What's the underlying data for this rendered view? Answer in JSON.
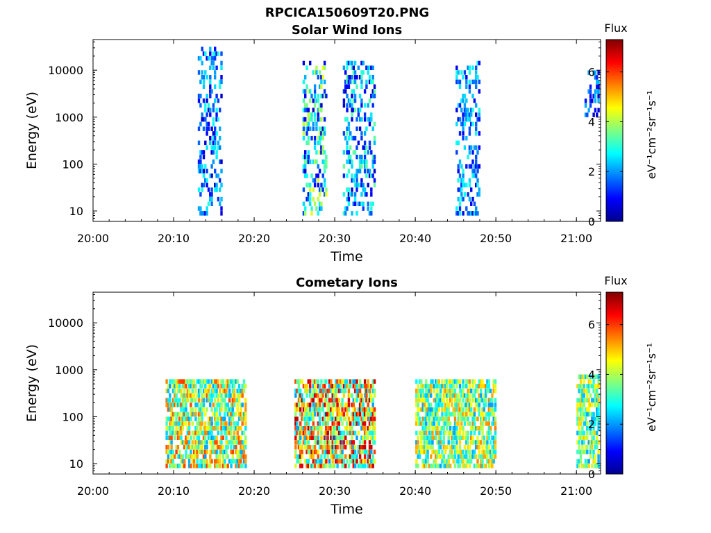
{
  "figure": {
    "title": "RPCICA150609T20.PNG"
  },
  "chart_data": [
    {
      "type": "heatmap",
      "title": "Solar Wind Ions",
      "xlabel": "Time",
      "ylabel": "Energy (eV)",
      "x_ticks": [
        "20:00",
        "20:10",
        "20:20",
        "20:30",
        "20:40",
        "20:50",
        "21:00"
      ],
      "xlim_minutes": [
        0,
        63
      ],
      "y_ticks": [
        "10",
        "100",
        "1000",
        "10000"
      ],
      "y_scale": "log",
      "ylim": [
        6,
        45000
      ],
      "colorbar": {
        "label": "Flux",
        "unit": "eV⁻¹cm⁻²sr⁻¹s⁻¹",
        "ticks": [
          "0",
          "2",
          "4",
          "6"
        ],
        "range": [
          0,
          7.3
        ]
      },
      "activity_intervals": [
        {
          "start": "20:13",
          "end": "20:15",
          "energy_range_eV": [
            8,
            30000
          ],
          "flux_range": [
            0.5,
            3
          ]
        },
        {
          "start": "20:26",
          "end": "20:28",
          "energy_range_eV": [
            8,
            15000
          ],
          "flux_range": [
            0.5,
            4.5
          ]
        },
        {
          "start": "20:31",
          "end": "20:34",
          "energy_range_eV": [
            8,
            15000
          ],
          "flux_range": [
            0.5,
            3.5
          ]
        },
        {
          "start": "20:45",
          "end": "20:47",
          "energy_range_eV": [
            8,
            15000
          ],
          "flux_range": [
            0.5,
            3
          ]
        },
        {
          "start": "21:01",
          "end": "21:02",
          "energy_range_eV": [
            1000,
            10000
          ],
          "flux_range": [
            0.5,
            2.5
          ]
        }
      ]
    },
    {
      "type": "heatmap",
      "title": "Cometary Ions",
      "xlabel": "Time",
      "ylabel": "Energy (eV)",
      "x_ticks": [
        "20:00",
        "20:10",
        "20:20",
        "20:30",
        "20:40",
        "20:50",
        "21:00"
      ],
      "xlim_minutes": [
        0,
        63
      ],
      "y_ticks": [
        "10",
        "100",
        "1000",
        "10000"
      ],
      "y_scale": "log",
      "ylim": [
        6,
        45000
      ],
      "colorbar": {
        "label": "Flux",
        "unit": "eV⁻¹cm⁻²sr⁻¹s⁻¹",
        "ticks": [
          "0",
          "2",
          "4",
          "6"
        ],
        "range": [
          0,
          7.3
        ]
      },
      "activity_intervals": [
        {
          "start": "20:09",
          "end": "20:18",
          "energy_range_eV": [
            8,
            600
          ],
          "flux_range": [
            2,
            6
          ]
        },
        {
          "start": "20:25",
          "end": "20:34",
          "energy_range_eV": [
            8,
            600
          ],
          "flux_range": [
            2,
            7
          ]
        },
        {
          "start": "20:40",
          "end": "20:49",
          "energy_range_eV": [
            8,
            600
          ],
          "flux_range": [
            2,
            5.5
          ]
        },
        {
          "start": "21:00",
          "end": "21:02",
          "energy_range_eV": [
            8,
            800
          ],
          "flux_range": [
            2,
            5
          ]
        }
      ]
    }
  ]
}
